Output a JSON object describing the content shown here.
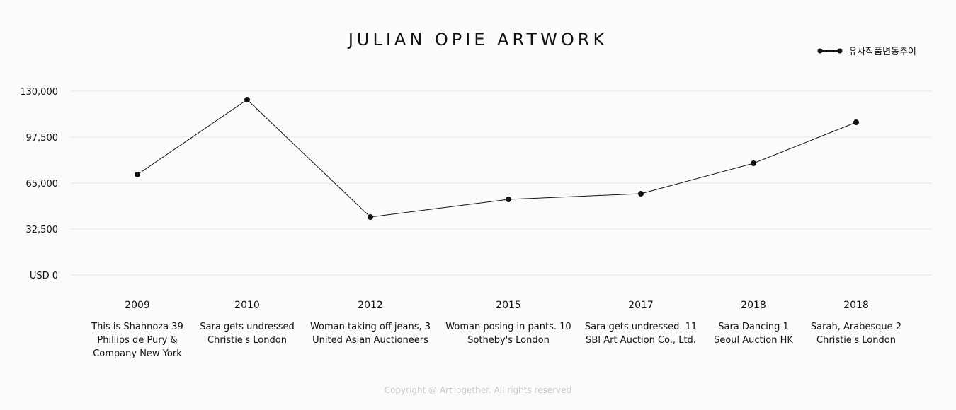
{
  "title": "JULIAN OPIE ARTWORK",
  "footer": "Copyright @ ArtTogether. All rights reserved",
  "colors": {
    "line": "#111111",
    "grid": "#e4e4e4",
    "background": "#fbfbfb",
    "footer": "#c8c8c8"
  },
  "chart_data": {
    "type": "line",
    "title": "JULIAN OPIE ARTWORK",
    "ylim": [
      0,
      130000
    ],
    "yticks": [
      0,
      32500,
      65000,
      97500,
      130000
    ],
    "ytick_labels": [
      "USD 0",
      "32,500",
      "65,000",
      "97,500",
      "130,000"
    ],
    "grid": true,
    "legend_position": "top-right",
    "categories": [
      "2009",
      "2010",
      "2012",
      "2015",
      "2017",
      "2018",
      "2018"
    ],
    "category_descriptions": [
      [
        "This is Shahnoza 39",
        "Phillips de Pury &",
        "Company New York"
      ],
      [
        "Sara gets undressed",
        "Christie's London"
      ],
      [
        "Woman taking off jeans, 3",
        "United Asian Auctioneers"
      ],
      [
        "Woman posing in pants. 10",
        "Sotheby's London"
      ],
      [
        "Sara gets undressed. 11",
        "SBI Art Auction Co., Ltd."
      ],
      [
        "Sara Dancing 1",
        "Seoul Auction HK"
      ],
      [
        "Sarah, Arabesque 2",
        "Christie's London"
      ]
    ],
    "series": [
      {
        "name": "유사작품변동추이",
        "values": [
          71000,
          124000,
          41000,
          53500,
          57500,
          79000,
          108000
        ]
      }
    ]
  }
}
